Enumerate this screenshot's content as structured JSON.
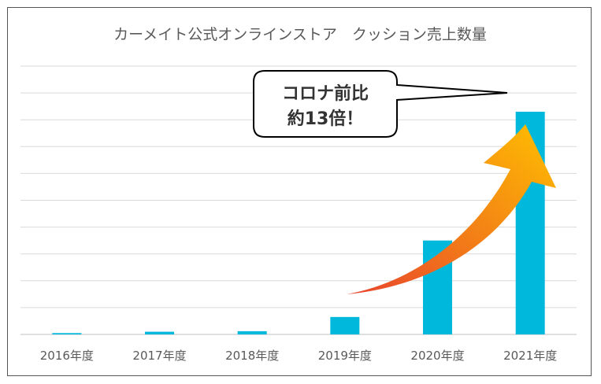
{
  "chart_data": {
    "type": "bar",
    "title": "カーメイト公式オンラインストア　クッション売上数量",
    "categories": [
      "2016年度",
      "2017年度",
      "2018年度",
      "2019年度",
      "2020年度",
      "2021年度"
    ],
    "values": [
      0.5,
      1,
      1.2,
      6.5,
      35,
      83
    ],
    "ylim": [
      0,
      100
    ],
    "grid": true,
    "gridline_count": 10,
    "legend": "none",
    "bar_color": "#00b8dc",
    "annotation": {
      "lines": [
        "コロナ前比",
        "約13倍！"
      ],
      "arrow_gradient": [
        "#e8452c",
        "#ffc000"
      ]
    }
  }
}
